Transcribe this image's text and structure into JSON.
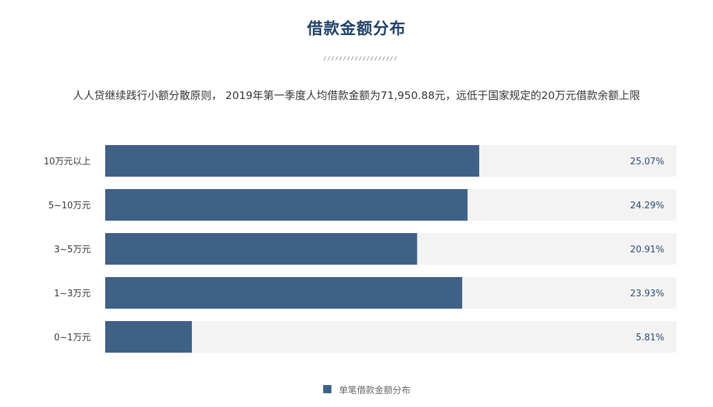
{
  "header": {
    "title": "借款金额分布",
    "subtitle": "人人贷继续践行小额分散原则， 2019年第一季度人均借款金额为71,950.88元，远低于国家规定的20万元借款余额上限"
  },
  "colors": {
    "bar": "#3f6188",
    "track": "#f3f3f3",
    "title": "#1f4068",
    "value_label": "#2a4a73",
    "category_label": "#333333"
  },
  "chart_data": {
    "type": "bar",
    "orientation": "horizontal",
    "categories": [
      "10万元以上",
      "5~10万元",
      "3~5万元",
      "1~3万元",
      "0~1万元"
    ],
    "series": [
      {
        "name": "单笔借款金额分布",
        "values": [
          25.07,
          24.29,
          20.91,
          23.93,
          5.81
        ],
        "labels": [
          "25.07%",
          "24.29%",
          "20.91%",
          "23.93%",
          "5.81%"
        ]
      }
    ],
    "xlim": [
      0,
      38.3
    ],
    "grid": false,
    "legend": "bottom-center"
  }
}
